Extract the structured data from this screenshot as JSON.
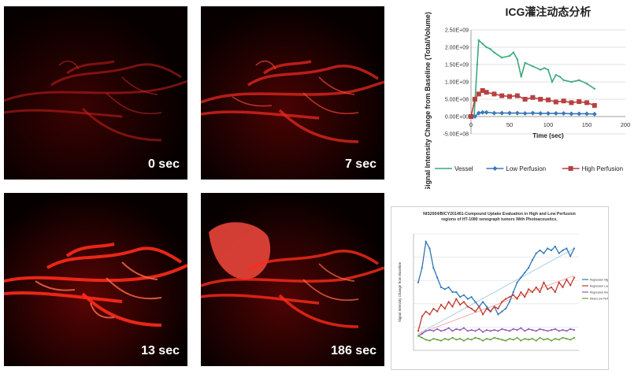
{
  "panels": [
    {
      "label": "0 sec",
      "intensity": 0.35
    },
    {
      "label": "7 sec",
      "intensity": 0.7
    },
    {
      "label": "13 sec",
      "intensity": 1.0
    },
    {
      "label": "186 sec",
      "intensity": 0.8
    }
  ],
  "chart_data": [
    {
      "type": "line",
      "title": "ICG灌注动态分析",
      "xlabel": "Time (sec)",
      "ylabel": "Signal Intensity Change from Baseline (Total/Volume)",
      "xlim": [
        0,
        200
      ],
      "ylim": [
        -500000000.0,
        2500000000.0
      ],
      "xticks": [
        "0",
        "50",
        "100",
        "150",
        "200"
      ],
      "yticks": [
        "-5.00E+08",
        "0.00E+00",
        "5.00E+08",
        "1.00E+09",
        "1.50E+09",
        "2.00E+09",
        "2.50E+09"
      ],
      "legend": "bottom",
      "grid": true,
      "series": [
        {
          "name": "Vessel",
          "color": "#3aaa7a",
          "marker": "line",
          "x": [
            0,
            4,
            8,
            10,
            15,
            20,
            25,
            30,
            40,
            50,
            55,
            60,
            65,
            70,
            80,
            90,
            95,
            100,
            105,
            110,
            115,
            120,
            130,
            140,
            150,
            160
          ],
          "y": [
            0,
            0.0,
            1500000000.0,
            2200000000.0,
            2100000000.0,
            2000000000.0,
            1950000000.0,
            1850000000.0,
            1700000000.0,
            1750000000.0,
            1850000000.0,
            1650000000.0,
            1150000000.0,
            1550000000.0,
            1450000000.0,
            1350000000.0,
            1400000000.0,
            1350000000.0,
            1000000000.0,
            1200000000.0,
            1150000000.0,
            1050000000.0,
            1000000000.0,
            1050000000.0,
            950000000.0,
            800000000.0
          ]
        },
        {
          "name": "Low Perfusion",
          "color": "#3b78b8",
          "marker": "diamond",
          "x": [
            0,
            5,
            10,
            15,
            20,
            30,
            40,
            50,
            60,
            70,
            80,
            90,
            100,
            110,
            120,
            130,
            140,
            150,
            160
          ],
          "y": [
            0,
            0.0,
            100000000.0,
            120000000.0,
            120000000.0,
            100000000.0,
            100000000.0,
            100000000.0,
            100000000.0,
            90000000.0,
            100000000.0,
            90000000.0,
            90000000.0,
            90000000.0,
            90000000.0,
            80000000.0,
            80000000.0,
            80000000.0,
            70000000.0
          ]
        },
        {
          "name": "High Perfusion",
          "color": "#b84040",
          "marker": "square",
          "x": [
            0,
            5,
            10,
            15,
            20,
            30,
            40,
            50,
            60,
            70,
            80,
            90,
            100,
            110,
            120,
            130,
            140,
            150,
            160
          ],
          "y": [
            0,
            500000000.0,
            650000000.0,
            750000000.0,
            700000000.0,
            650000000.0,
            600000000.0,
            580000000.0,
            600000000.0,
            500000000.0,
            550000000.0,
            500000000.0,
            480000000.0,
            420000000.0,
            450000000.0,
            400000000.0,
            430000000.0,
            400000000.0,
            320000000.0
          ]
        }
      ]
    },
    {
      "type": "line",
      "title": "NIS2004/BICY201461-Compound Uptake Evaluation in High and Low Perfusion regions of HT-1080 xenograph tumors With Photoacoustics.",
      "ylabel": "Signal Intensity Change from Baseline",
      "legend": "right",
      "legend_entries": [
        "Regression High Perfusion",
        "Regression Low Perfusion",
        "Regression Average",
        "Mean Low Perfusion"
      ],
      "series": [
        {
          "color": "#2e75b6",
          "y": [
            0.55,
            0.7,
            0.97,
            0.9,
            0.7,
            0.6,
            0.5,
            0.48,
            0.5,
            0.45,
            0.45,
            0.4,
            0.42,
            0.38,
            0.4,
            0.35,
            0.3,
            0.35,
            0.3,
            0.25,
            0.3,
            0.22,
            0.25,
            0.28,
            0.35,
            0.45,
            0.55,
            0.6,
            0.65,
            0.7,
            0.78,
            0.85,
            0.88,
            0.85,
            0.9,
            0.88,
            0.92,
            0.85,
            0.88,
            0.9,
            0.82,
            0.9
          ]
        },
        {
          "color": "#c0392b",
          "y": [
            0.05,
            0.2,
            0.25,
            0.22,
            0.28,
            0.25,
            0.32,
            0.28,
            0.35,
            0.3,
            0.38,
            0.32,
            0.35,
            0.3,
            0.28,
            0.25,
            0.3,
            0.22,
            0.28,
            0.25,
            0.3,
            0.28,
            0.35,
            0.38,
            0.4,
            0.42,
            0.38,
            0.45,
            0.4,
            0.48,
            0.45,
            0.5,
            0.45,
            0.55,
            0.48,
            0.5,
            0.45,
            0.55,
            0.5,
            0.58,
            0.52,
            0.6
          ]
        },
        {
          "color": "#8e5bb5",
          "y": [
            0.0,
            0.02,
            0.05,
            0.06,
            0.05,
            0.07,
            0.05,
            0.06,
            0.08,
            0.05,
            0.07,
            0.06,
            0.08,
            0.05,
            0.06,
            0.05,
            0.07,
            0.04,
            0.06,
            0.05,
            0.06,
            0.05,
            0.07,
            0.06,
            0.05,
            0.07,
            0.06,
            0.08,
            0.05,
            0.07,
            0.06,
            0.05,
            0.07,
            0.06,
            0.05,
            0.06,
            0.07,
            0.05,
            0.06,
            0.05,
            0.07,
            0.06
          ]
        },
        {
          "color": "#5fa03a",
          "y": [
            0.0,
            -0.02,
            -0.04,
            -0.05,
            -0.03,
            -0.04,
            -0.05,
            -0.03,
            -0.04,
            -0.02,
            -0.04,
            -0.03,
            -0.05,
            -0.03,
            -0.04,
            -0.02,
            -0.03,
            -0.05,
            -0.03,
            -0.04,
            -0.02,
            -0.03,
            -0.04,
            -0.05,
            -0.03,
            -0.04,
            -0.02,
            -0.05,
            -0.03,
            -0.04,
            -0.03,
            -0.05,
            -0.02,
            -0.04,
            -0.03,
            -0.05,
            -0.03,
            -0.04,
            -0.02,
            -0.03,
            -0.04,
            -0.02
          ]
        }
      ],
      "trendlines": [
        {
          "color": "#9ecae1",
          "y": [
            0.02,
            0.9
          ]
        },
        {
          "color": "#f4a6a6",
          "y": [
            0.02,
            0.62
          ]
        }
      ]
    }
  ]
}
